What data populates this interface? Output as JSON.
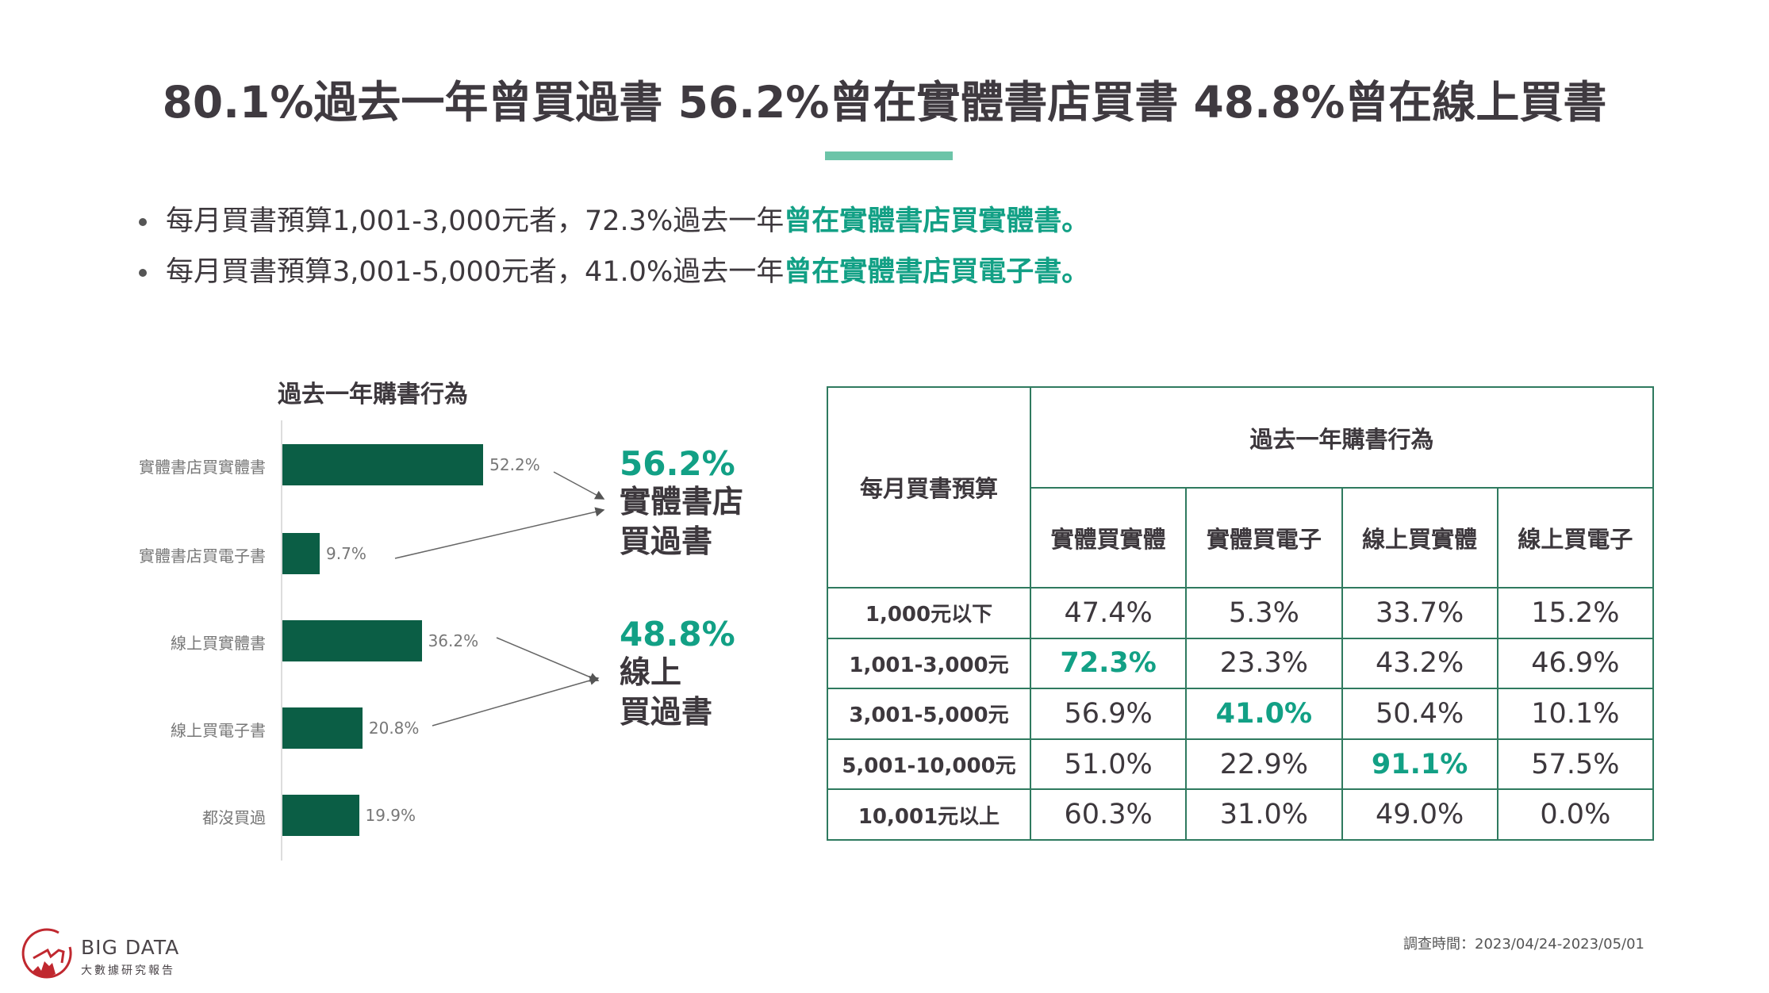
{
  "title": "80.1%過去一年曾買過書  56.2%曾在實體書店買書  48.8%曾在線上買書",
  "bullets": [
    {
      "text": "每月買書預算1,001-3,000元者，72.3%過去一年",
      "highlight": "曾在實體書店買實體書。"
    },
    {
      "text": "每月買書預算3,001-5,000元者，41.0%過去一年",
      "highlight": "曾在實體書店買電子書。"
    }
  ],
  "chart_data": {
    "type": "bar",
    "orientation": "horizontal",
    "title": "過去一年購書行為",
    "categories": [
      "實體書店買實體書",
      "實體書店買電子書",
      "線上買實體書",
      "線上買電子書",
      "都沒買過"
    ],
    "values": [
      52.2,
      9.7,
      36.2,
      20.8,
      19.9
    ],
    "value_labels": [
      "52.2%",
      "9.7%",
      "36.2%",
      "20.8%",
      "19.9%"
    ],
    "xlim": [
      0,
      100
    ],
    "annotations": [
      {
        "value": "56.2%",
        "line1": "實體書店",
        "line2": "買過書"
      },
      {
        "value": "48.8%",
        "line1": "線上",
        "line2": "買過書"
      }
    ]
  },
  "table": {
    "row_header": "每月買書預算",
    "group_header": "過去一年購書行為",
    "columns": [
      "實體買實體",
      "實體買電子",
      "線上買實體",
      "線上買電子"
    ],
    "rows": [
      {
        "label": "1,000元以下",
        "cells": [
          "47.4%",
          "5.3%",
          "33.7%",
          "15.2%"
        ],
        "hi": -1
      },
      {
        "label": "1,001-3,000元",
        "cells": [
          "72.3%",
          "23.3%",
          "43.2%",
          "46.9%"
        ],
        "hi": 0
      },
      {
        "label": "3,001-5,000元",
        "cells": [
          "56.9%",
          "41.0%",
          "50.4%",
          "10.1%"
        ],
        "hi": 1
      },
      {
        "label": "5,001-10,000元",
        "cells": [
          "51.0%",
          "22.9%",
          "91.1%",
          "57.5%"
        ],
        "hi": 2
      },
      {
        "label": "10,001元以上",
        "cells": [
          "60.3%",
          "31.0%",
          "49.0%",
          "0.0%"
        ],
        "hi": -1
      }
    ]
  },
  "logo": {
    "name": "BIG DATA",
    "subtitle": "大數據研究報告"
  },
  "footer": "調查時間：2023/04/24-2023/05/01",
  "colors": {
    "accent": "#12a085",
    "bar": "#0b5e45",
    "logo": "#c0282f"
  }
}
